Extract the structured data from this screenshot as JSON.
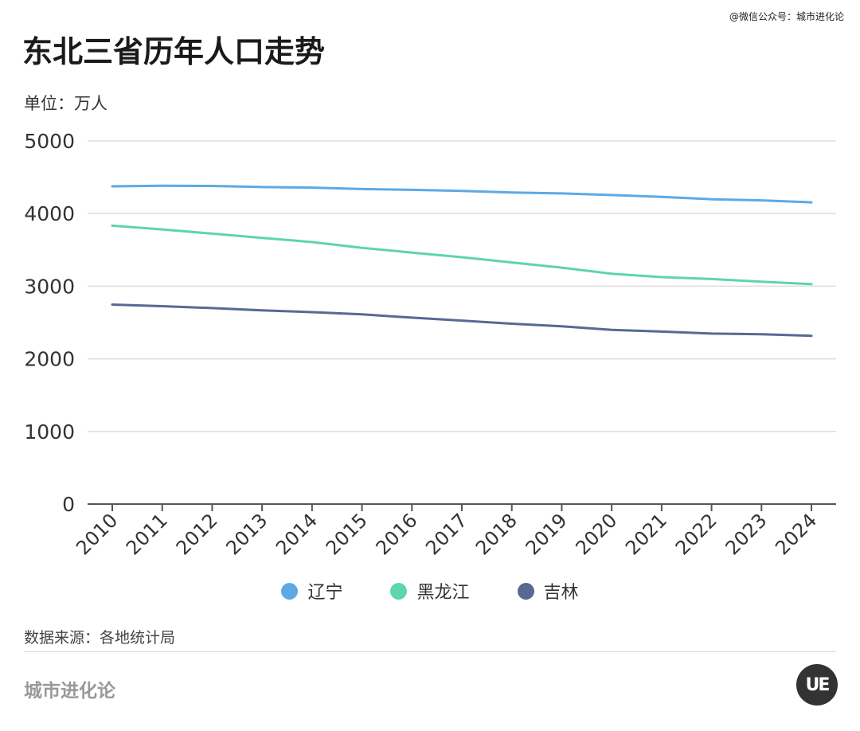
{
  "credit": "@微信公众号：城市进化论",
  "chart_data": {
    "type": "line",
    "title": "东北三省历年人口走势",
    "unit_label": "单位：万人",
    "categories": [
      "2010",
      "2011",
      "2012",
      "2013",
      "2014",
      "2015",
      "2016",
      "2017",
      "2018",
      "2019",
      "2020",
      "2021",
      "2022",
      "2023",
      "2024"
    ],
    "ylim": [
      0,
      5000
    ],
    "yticks": [
      0,
      1000,
      2000,
      3000,
      4000,
      5000
    ],
    "xlabel": "",
    "ylabel": "",
    "grid": true,
    "legend_position": "bottom",
    "series": [
      {
        "name": "辽宁",
        "color": "#5BAAE6",
        "values": [
          4375,
          4383,
          4380,
          4365,
          4358,
          4338,
          4327,
          4312,
          4291,
          4277,
          4255,
          4229,
          4197,
          4182,
          4155
        ]
      },
      {
        "name": "黑龙江",
        "color": "#5DD6A9",
        "values": [
          3833,
          3782,
          3724,
          3666,
          3608,
          3529,
          3463,
          3399,
          3327,
          3255,
          3171,
          3125,
          3099,
          3062,
          3029
        ]
      },
      {
        "name": "吉林",
        "color": "#566A92",
        "values": [
          2747,
          2725,
          2698,
          2668,
          2642,
          2613,
          2567,
          2526,
          2484,
          2448,
          2399,
          2375,
          2348,
          2339,
          2317
        ]
      }
    ]
  },
  "source": "数据来源：各地统计局",
  "brand": "城市进化论",
  "logo_text": "UE"
}
